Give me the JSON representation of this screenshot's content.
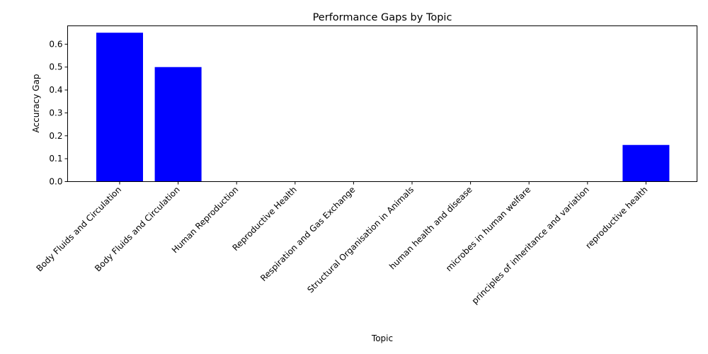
{
  "chart_data": {
    "type": "bar",
    "title": "Performance Gaps by Topic",
    "xlabel": "Topic",
    "ylabel": "Accuracy Gap",
    "categories": [
      "Body Fluids and Circulation",
      "Body Fluids and Circulation",
      "Human Reproduction",
      "Reproductive Health",
      "Respiration and Gas Exchange",
      "Structural Organisation in Animals",
      "human health and disease",
      "microbes in human welfare",
      "principles of inheritance and variation",
      "reproductive health"
    ],
    "values": [
      0.65,
      0.5,
      0,
      0,
      0,
      0,
      0,
      0,
      0,
      0.16
    ],
    "ylim": [
      0,
      0.68
    ],
    "yticks": [
      0.0,
      0.1,
      0.2,
      0.3,
      0.4,
      0.5,
      0.6
    ],
    "ytick_labels": [
      "0.0",
      "0.1",
      "0.2",
      "0.3",
      "0.4",
      "0.5",
      "0.6"
    ],
    "bar_color": "#0000ff",
    "grid": false,
    "legend": "none"
  }
}
